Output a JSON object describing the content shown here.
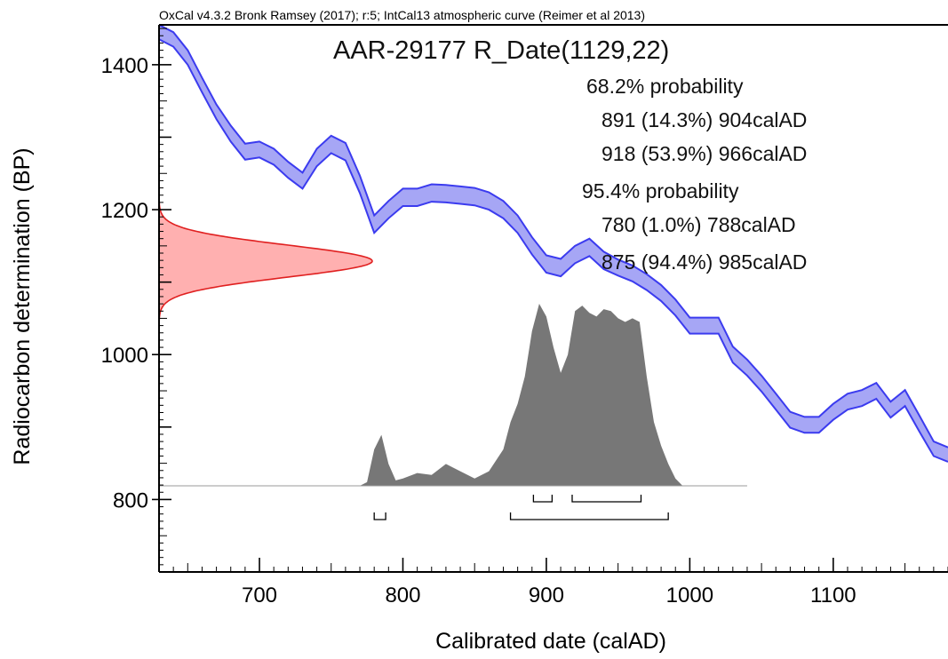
{
  "header": {
    "software": "OxCal v4.3.2 Bronk Ramsey (2017); r:5; IntCal13 atmospheric curve (Reimer et al 2013)"
  },
  "chart_data": {
    "type": "area",
    "title": "AAR-29177 R_Date(1129,22)",
    "xlabel": "Calibrated date (calAD)",
    "ylabel": "Radiocarbon determination (BP)",
    "xlim": [
      630,
      1180
    ],
    "ylim": [
      700,
      1455
    ],
    "x_ticks": [
      700,
      800,
      900,
      1000,
      1100
    ],
    "x_tick_labels": [
      "700",
      "800",
      "900",
      "1000",
      "1100"
    ],
    "y_ticks": [
      800,
      1000,
      1200,
      1400
    ],
    "y_tick_labels": [
      "800",
      "1000",
      "1200",
      "1400"
    ],
    "stats": [
      "68.2% probability",
      "891 (14.3%) 904calAD",
      "918 (53.9%) 966calAD",
      "95.4% probability",
      "780 (1.0%) 788calAD",
      "875 (94.4%) 985calAD"
    ],
    "calibration_curve": {
      "name": "IntCal13",
      "color": "#3b3bef",
      "fill": "#a6a6f5",
      "x": [
        630,
        640,
        650,
        660,
        670,
        680,
        690,
        700,
        710,
        720,
        730,
        740,
        750,
        760,
        770,
        780,
        790,
        800,
        810,
        820,
        830,
        840,
        850,
        860,
        870,
        880,
        890,
        900,
        910,
        920,
        930,
        940,
        950,
        960,
        970,
        980,
        990,
        1000,
        1010,
        1020,
        1030,
        1040,
        1050,
        1060,
        1070,
        1080,
        1090,
        1100,
        1110,
        1120,
        1130,
        1140,
        1150,
        1160,
        1170,
        1180
      ],
      "mean": [
        1445,
        1435,
        1410,
        1372,
        1335,
        1305,
        1280,
        1283,
        1273,
        1255,
        1240,
        1272,
        1290,
        1280,
        1235,
        1180,
        1200,
        1217,
        1217,
        1223,
        1222,
        1220,
        1218,
        1212,
        1200,
        1180,
        1150,
        1125,
        1120,
        1138,
        1148,
        1130,
        1120,
        1112,
        1100,
        1085,
        1065,
        1040,
        1040,
        1040,
        1000,
        982,
        960,
        935,
        910,
        903,
        903,
        921,
        935,
        940,
        950,
        924,
        940,
        905,
        870,
        862
      ],
      "halfwidth": [
        10,
        10,
        10,
        10,
        10,
        11,
        11,
        11,
        11,
        11,
        11,
        12,
        12,
        12,
        12,
        12,
        12,
        12,
        12,
        12,
        12,
        12,
        12,
        12,
        12,
        12,
        12,
        12,
        12,
        12,
        12,
        12,
        11,
        11,
        11,
        11,
        11,
        11,
        11,
        11,
        11,
        11,
        11,
        11,
        11,
        11,
        11,
        11,
        11,
        11,
        11,
        11,
        11,
        11,
        10,
        10
      ]
    },
    "radiocarbon_determination": {
      "name": "R_Date(1129,22)",
      "mean_bp": 1129,
      "sigma_bp": 22,
      "color": "#e02020",
      "fill": "#ffb0b0"
    },
    "posterior": {
      "color": "#777777",
      "x": [
        610,
        770,
        775,
        780,
        785,
        790,
        795,
        800,
        810,
        820,
        830,
        840,
        850,
        860,
        870,
        875,
        880,
        885,
        890,
        895,
        900,
        905,
        910,
        915,
        920,
        925,
        930,
        935,
        940,
        945,
        950,
        955,
        960,
        965,
        970,
        975,
        980,
        985,
        990,
        995,
        1040
      ],
      "density": [
        0,
        0,
        0.02,
        0.2,
        0.28,
        0.12,
        0.03,
        0.04,
        0.07,
        0.06,
        0.12,
        0.08,
        0.04,
        0.08,
        0.2,
        0.35,
        0.45,
        0.6,
        0.85,
        1.0,
        0.93,
        0.76,
        0.62,
        0.72,
        0.96,
        0.99,
        0.95,
        0.93,
        0.97,
        0.96,
        0.92,
        0.9,
        0.92,
        0.9,
        0.6,
        0.35,
        0.22,
        0.12,
        0.04,
        0.0,
        0
      ]
    },
    "ranges_68": [
      [
        891,
        904
      ],
      [
        918,
        966
      ]
    ],
    "ranges_95": [
      [
        780,
        788
      ],
      [
        875,
        985
      ]
    ]
  }
}
